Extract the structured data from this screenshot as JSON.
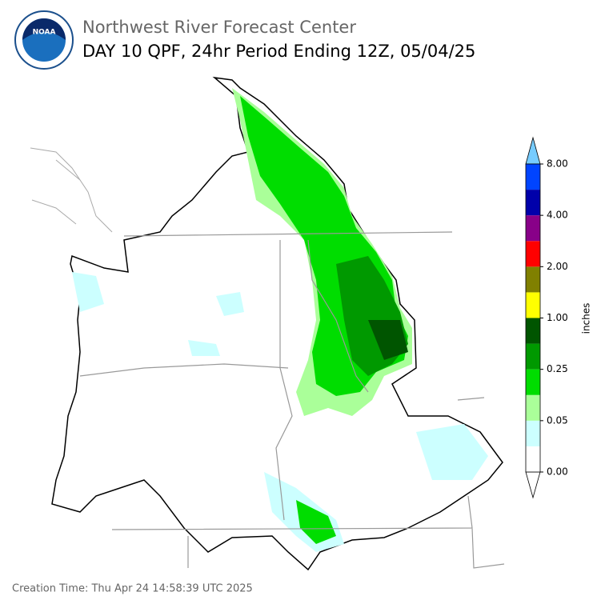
{
  "header": {
    "agency": "NOAA",
    "title": "Northwest River Forecast Center",
    "subtitle": "DAY 10 QPF, 24hr Period Ending 12Z, 05/04/25"
  },
  "colorbar": {
    "label": "inches",
    "colors": [
      "#ffffff",
      "#ccffff",
      "#aaff99",
      "#00dd00",
      "#009900",
      "#005500",
      "#ffff00",
      "#808000",
      "#ff0000",
      "#880088",
      "#0000aa",
      "#0044ff"
    ],
    "extend_color": "#77ccff",
    "ticks": [
      {
        "value": 0,
        "label": "0.00"
      },
      {
        "value": 0.05,
        "label": "0.05"
      },
      {
        "value": 0.25,
        "label": "0.25"
      },
      {
        "value": 1,
        "label": "1.00"
      },
      {
        "value": 2,
        "label": "2.00"
      },
      {
        "value": 4,
        "label": "4.00"
      },
      {
        "value": 8,
        "label": "8.00"
      }
    ]
  },
  "footer": {
    "creation_time": "Creation Time: Thu Apr 24 14:58:39 UTC 2025"
  }
}
